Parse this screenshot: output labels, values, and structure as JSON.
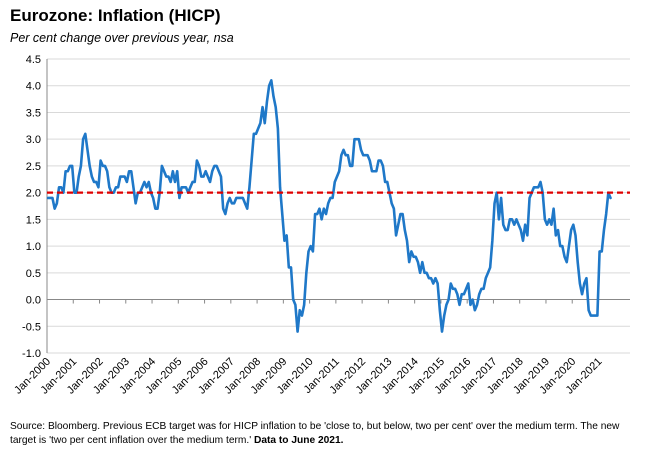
{
  "header": {
    "title": "Eurozone: Inflation (HICP)",
    "subtitle": "Per cent change over previous year, nsa"
  },
  "footer": {
    "source_text": "Source: Bloomberg. Previous ECB target was for HICP inflation to be 'close to, but below, two per cent' over the medium term. The new target is 'two per cent inflation over the medium term.'",
    "source_bold": "Data to June 2021."
  },
  "colors": {
    "series": "#1f78c8",
    "target": "#e00000",
    "grid": "#d9d9d9",
    "axis": "#888888"
  },
  "chart_data": {
    "type": "line",
    "ylim": [
      -1.0,
      4.5
    ],
    "yticks": [
      "-1.0",
      "-0.5",
      "0.0",
      "0.5",
      "1.0",
      "1.5",
      "2.0",
      "2.5",
      "3.0",
      "3.5",
      "4.0",
      "4.5"
    ],
    "xticks": [
      "Jan-2000",
      "Jan-2001",
      "Jan-2002",
      "Jan-2003",
      "Jan-2004",
      "Jan-2005",
      "Jan-2006",
      "Jan-2007",
      "Jan-2008",
      "Jan-2009",
      "Jan-2010",
      "Jan-2011",
      "Jan-2012",
      "Jan-2013",
      "Jan-2014",
      "Jan-2015",
      "Jan-2016",
      "Jan-2017",
      "Jan-2018",
      "Jan-2019",
      "Jan-2020",
      "Jan-2021"
    ],
    "x_start": "Jan-2000",
    "x_end": "Jun-2021",
    "target_line": 2.0,
    "grid": "horizontal",
    "series": [
      {
        "values": [
          1.9,
          1.9,
          1.9,
          1.7,
          1.8,
          2.1,
          2.1,
          2.0,
          2.4,
          2.4,
          2.5,
          2.5,
          2.0,
          2.0,
          2.3,
          2.5,
          3.0,
          3.1,
          2.8,
          2.5,
          2.3,
          2.2,
          2.2,
          2.1,
          2.6,
          2.5,
          2.5,
          2.4,
          2.1,
          2.0,
          2.0,
          2.1,
          2.1,
          2.3,
          2.3,
          2.3,
          2.2,
          2.4,
          2.4,
          2.1,
          1.8,
          2.0,
          2.0,
          2.1,
          2.2,
          2.1,
          2.2,
          2.0,
          1.9,
          1.7,
          1.7,
          2.0,
          2.5,
          2.4,
          2.3,
          2.3,
          2.2,
          2.4,
          2.2,
          2.4,
          1.9,
          2.1,
          2.1,
          2.1,
          2.0,
          2.1,
          2.2,
          2.2,
          2.6,
          2.5,
          2.3,
          2.3,
          2.4,
          2.3,
          2.2,
          2.4,
          2.5,
          2.5,
          2.4,
          2.3,
          1.7,
          1.6,
          1.8,
          1.9,
          1.8,
          1.8,
          1.9,
          1.9,
          1.9,
          1.9,
          1.8,
          1.7,
          2.1,
          2.6,
          3.1,
          3.1,
          3.2,
          3.3,
          3.6,
          3.3,
          3.7,
          4.0,
          4.1,
          3.8,
          3.6,
          3.2,
          2.1,
          1.6,
          1.1,
          1.2,
          0.6,
          0.6,
          0.0,
          -0.1,
          -0.6,
          -0.2,
          -0.3,
          -0.1,
          0.5,
          0.9,
          1.0,
          0.9,
          1.6,
          1.6,
          1.7,
          1.5,
          1.7,
          1.6,
          1.8,
          1.9,
          1.9,
          2.2,
          2.3,
          2.4,
          2.7,
          2.8,
          2.7,
          2.7,
          2.5,
          2.5,
          3.0,
          3.0,
          3.0,
          2.8,
          2.7,
          2.7,
          2.7,
          2.6,
          2.4,
          2.4,
          2.4,
          2.6,
          2.6,
          2.5,
          2.2,
          2.2,
          2.0,
          1.8,
          1.7,
          1.2,
          1.4,
          1.6,
          1.6,
          1.3,
          1.1,
          0.7,
          0.9,
          0.8,
          0.8,
          0.7,
          0.5,
          0.7,
          0.5,
          0.5,
          0.4,
          0.4,
          0.3,
          0.4,
          0.3,
          -0.2,
          -0.6,
          -0.3,
          -0.1,
          0.0,
          0.3,
          0.2,
          0.2,
          0.1,
          -0.1,
          0.1,
          0.1,
          0.2,
          0.3,
          -0.1,
          0.0,
          -0.2,
          -0.1,
          0.1,
          0.2,
          0.2,
          0.4,
          0.5,
          0.6,
          1.1,
          1.8,
          2.0,
          1.5,
          1.9,
          1.4,
          1.3,
          1.3,
          1.5,
          1.5,
          1.4,
          1.5,
          1.4,
          1.3,
          1.1,
          1.4,
          1.2,
          1.9,
          2.0,
          2.1,
          2.1,
          2.1,
          2.2,
          2.0,
          1.5,
          1.4,
          1.5,
          1.4,
          1.7,
          1.2,
          1.3,
          1.0,
          1.0,
          0.8,
          0.7,
          1.0,
          1.3,
          1.4,
          1.2,
          0.7,
          0.3,
          0.1,
          0.3,
          0.4,
          -0.2,
          -0.3,
          -0.3,
          -0.3,
          -0.3,
          0.9,
          0.9,
          1.3,
          1.6,
          2.0,
          1.9
        ]
      }
    ]
  }
}
